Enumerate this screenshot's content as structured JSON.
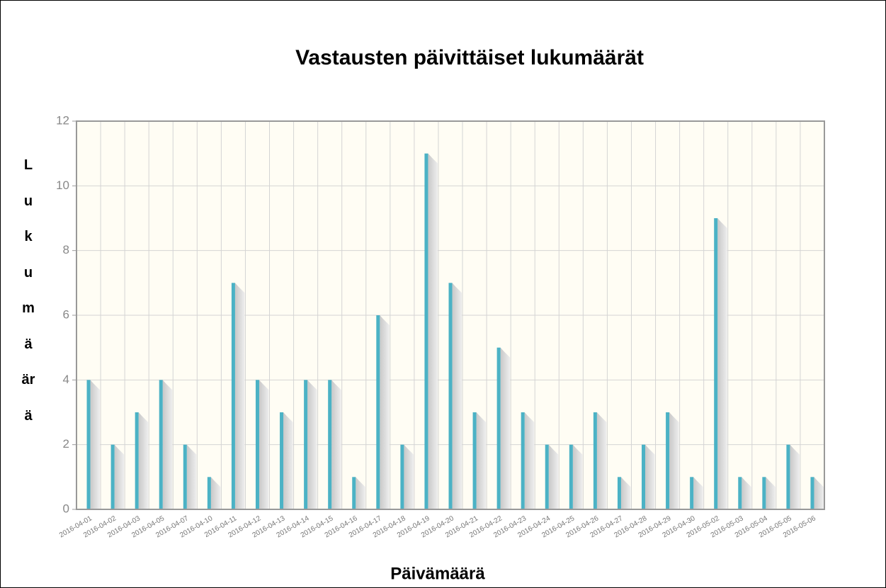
{
  "chart_data": {
    "type": "bar",
    "title": "Vastausten päivittäiset lukumäärät",
    "x_label": "Päivämäärä",
    "y_label": "Lukumäärä",
    "categories": [
      "2016-04-01",
      "2016-04-02",
      "2016-04-03",
      "2016-04-05",
      "2016-04-07",
      "2016-04-10",
      "2016-04-11",
      "2016-04-12",
      "2016-04-13",
      "2016-04-14",
      "2016-04-15",
      "2016-04-16",
      "2016-04-17",
      "2016-04-18",
      "2016-04-19",
      "2016-04-20",
      "2016-04-21",
      "2016-04-22",
      "2016-04-23",
      "2016-04-24",
      "2016-04-25",
      "2016-04-26",
      "2016-04-27",
      "2016-04-28",
      "2016-04-29",
      "2016-04-30",
      "2016-05-02",
      "2016-05-03",
      "2016-05-04",
      "2016-05-05",
      "2016-05-06"
    ],
    "values": [
      4,
      2,
      3,
      4,
      2,
      1,
      7,
      4,
      3,
      4,
      4,
      1,
      6,
      2,
      11,
      7,
      3,
      5,
      3,
      2,
      2,
      3,
      1,
      2,
      3,
      1,
      9,
      1,
      1,
      2,
      1
    ],
    "color": "#4bb2c5",
    "ylim": [
      0,
      12
    ],
    "yticks": [
      0,
      2,
      4,
      6,
      8,
      10,
      12
    ],
    "grid": true
  }
}
